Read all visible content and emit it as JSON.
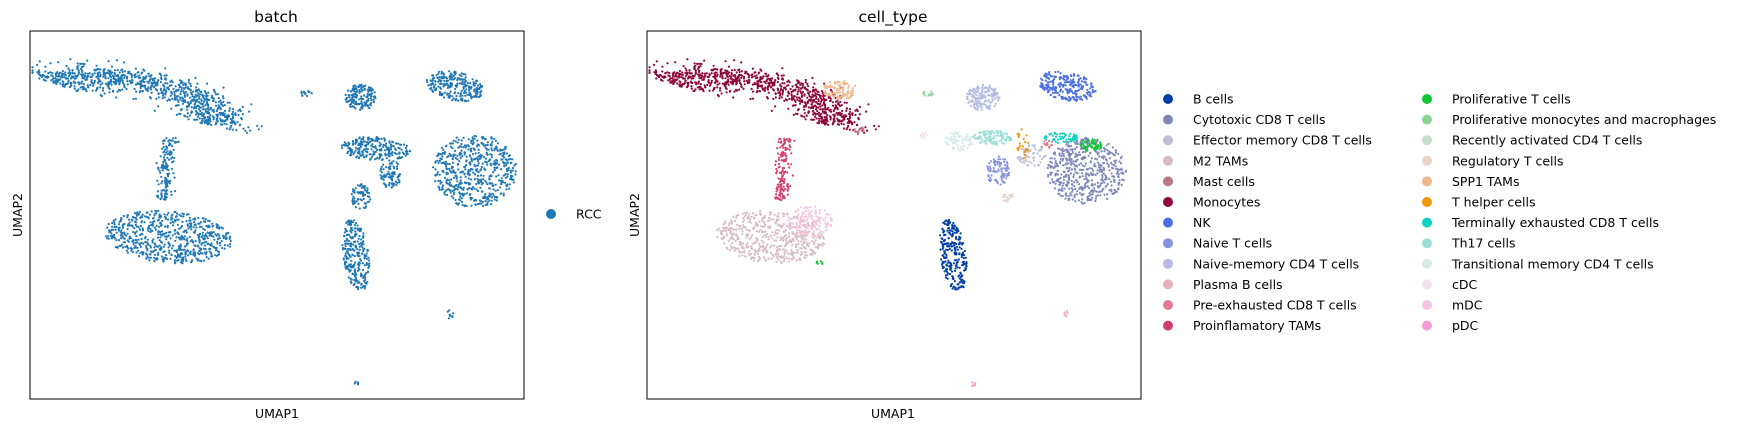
{
  "chart_data": [
    {
      "type": "scatter",
      "title": "batch",
      "xlabel": "UMAP1",
      "ylabel": "UMAP2",
      "xlim": [
        0,
        100
      ],
      "ylim": [
        0,
        100
      ],
      "grid": false,
      "ticks": false,
      "legend_position": "right",
      "legend": [
        {
          "name": "RCC",
          "color": "#1f77b4"
        }
      ],
      "clusters": [
        {
          "label": "RCC",
          "color": "#1f77b4",
          "shape": "arc",
          "cx": 20,
          "cy": 79,
          "rx": 18,
          "ry": 8,
          "rot": -14,
          "n": 900
        },
        {
          "label": "RCC",
          "color": "#1f77b4",
          "shape": "blob",
          "cx": 28,
          "cy": 44,
          "rx": 13,
          "ry": 7,
          "rot": -8,
          "n": 650
        },
        {
          "label": "RCC",
          "color": "#1f77b4",
          "shape": "stem",
          "x0": 28,
          "y0": 71,
          "x1": 27,
          "y1": 54,
          "w": 1.6,
          "n": 140
        },
        {
          "label": "RCC",
          "color": "#1f77b4",
          "shape": "blob",
          "cx": 66,
          "cy": 39,
          "rx": 2.6,
          "ry": 10,
          "rot": 6,
          "n": 260
        },
        {
          "label": "RCC",
          "color": "#1f77b4",
          "shape": "blob",
          "cx": 67,
          "cy": 55,
          "rx": 2,
          "ry": 3.5,
          "rot": 0,
          "n": 70
        },
        {
          "label": "RCC",
          "color": "#1f77b4",
          "shape": "blob",
          "cx": 90,
          "cy": 62,
          "rx": 8.5,
          "ry": 10,
          "rot": 0,
          "n": 560
        },
        {
          "label": "RCC",
          "color": "#1f77b4",
          "shape": "blob",
          "cx": 86,
          "cy": 85,
          "rx": 6,
          "ry": 3.8,
          "rot": -20,
          "n": 240
        },
        {
          "label": "RCC",
          "color": "#1f77b4",
          "shape": "blob",
          "cx": 67,
          "cy": 82,
          "rx": 3.2,
          "ry": 3.5,
          "rot": 0,
          "n": 160
        },
        {
          "label": "RCC",
          "color": "#1f77b4",
          "shape": "blob",
          "cx": 70,
          "cy": 68,
          "rx": 7,
          "ry": 3.2,
          "rot": -5,
          "n": 240
        },
        {
          "label": "RCC",
          "color": "#1f77b4",
          "shape": "blob",
          "cx": 73,
          "cy": 61,
          "rx": 2.2,
          "ry": 4,
          "rot": 0,
          "n": 80
        },
        {
          "label": "RCC",
          "color": "#1f77b4",
          "shape": "blob",
          "cx": 56,
          "cy": 83,
          "rx": 1.4,
          "ry": 0.8,
          "rot": 0,
          "n": 14
        },
        {
          "label": "RCC",
          "color": "#1f77b4",
          "shape": "blob",
          "cx": 85,
          "cy": 23,
          "rx": 0.9,
          "ry": 1.2,
          "rot": 0,
          "n": 8
        },
        {
          "label": "RCC",
          "color": "#1f77b4",
          "shape": "blob",
          "cx": 66,
          "cy": 4,
          "rx": 0.5,
          "ry": 0.8,
          "rot": 0,
          "n": 5
        }
      ]
    },
    {
      "type": "scatter",
      "title": "cell_type",
      "xlabel": "UMAP1",
      "ylabel": "UMAP2",
      "xlim": [
        0,
        100
      ],
      "ylim": [
        0,
        100
      ],
      "grid": false,
      "ticks": false,
      "legend_position": "right",
      "legend": [
        {
          "name": "B cells",
          "color": "#023fa5"
        },
        {
          "name": "Cytotoxic CD8 T cells",
          "color": "#7d87b9"
        },
        {
          "name": "Effector memory CD8 T cells",
          "color": "#bec1d4"
        },
        {
          "name": "M2 TAMs",
          "color": "#d6bcc0"
        },
        {
          "name": "Mast cells",
          "color": "#bb7784"
        },
        {
          "name": "Monocytes",
          "color": "#8e063b"
        },
        {
          "name": "NK",
          "color": "#4a6fe3"
        },
        {
          "name": "Naive T cells",
          "color": "#8595e1"
        },
        {
          "name": "Naive-memory CD4 T cells",
          "color": "#b5bbe3"
        },
        {
          "name": "Plasma B cells",
          "color": "#e6afb9"
        },
        {
          "name": "Pre-exhausted CD8 T cells",
          "color": "#e07b91"
        },
        {
          "name": "Proinflamatory TAMs",
          "color": "#d33f6a"
        },
        {
          "name": "Proliferative T cells",
          "color": "#11c638"
        },
        {
          "name": "Proliferative monocytes and macrophages",
          "color": "#8dd593"
        },
        {
          "name": "Recently activated CD4 T cells",
          "color": "#c6dec7"
        },
        {
          "name": "Regulatory T cells",
          "color": "#ead3c6"
        },
        {
          "name": "SPP1 TAMs",
          "color": "#f0b98d"
        },
        {
          "name": "T helper cells",
          "color": "#ef9708"
        },
        {
          "name": "Terminally exhausted CD8 T cells",
          "color": "#0fcfc0"
        },
        {
          "name": "Th17 cells",
          "color": "#9cded6"
        },
        {
          "name": "Transitional memory CD4 T cells",
          "color": "#d5eae7"
        },
        {
          "name": "cDC",
          "color": "#f3e1eb"
        },
        {
          "name": "mDC",
          "color": "#f6c4e1"
        },
        {
          "name": "pDC",
          "color": "#f79cd4"
        }
      ],
      "clusters": [
        {
          "label": "Monocytes",
          "color": "#8e063b",
          "shape": "arc",
          "cx": 20,
          "cy": 79,
          "rx": 18,
          "ry": 8,
          "rot": -14,
          "n": 900
        },
        {
          "label": "SPP1 TAMs",
          "color": "#f0b98d",
          "shape": "blob",
          "cx": 39,
          "cy": 84,
          "rx": 3.4,
          "ry": 2.8,
          "rot": 0,
          "n": 90
        },
        {
          "label": "Proinflamatory TAMs",
          "color": "#d33f6a",
          "shape": "stem",
          "x0": 28,
          "y0": 71,
          "x1": 27,
          "y1": 54,
          "w": 1.6,
          "n": 140
        },
        {
          "label": "M2 TAMs",
          "color": "#d6bcc0",
          "shape": "blob",
          "cx": 25,
          "cy": 44,
          "rx": 11,
          "ry": 7,
          "rot": -8,
          "n": 520
        },
        {
          "label": "mDC",
          "color": "#f6c4e1",
          "shape": "blob",
          "cx": 33,
          "cy": 48,
          "rx": 4.5,
          "ry": 4.5,
          "rot": 0,
          "n": 140
        },
        {
          "label": "Mast cells",
          "color": "#bb7784",
          "shape": "blob",
          "cx": 43,
          "cy": 73,
          "rx": 1,
          "ry": 1.5,
          "rot": 0,
          "n": 14
        },
        {
          "label": "Proliferative monocytes and macrophages",
          "color": "#8dd593",
          "shape": "blob",
          "cx": 57,
          "cy": 83,
          "rx": 1.3,
          "ry": 0.8,
          "rot": 0,
          "n": 12
        },
        {
          "label": "Proliferative T cells",
          "color": "#11c638",
          "shape": "blob",
          "cx": 35,
          "cy": 37,
          "rx": 0.8,
          "ry": 0.6,
          "rot": 0,
          "n": 6
        },
        {
          "label": "B cells",
          "color": "#023fa5",
          "shape": "blob",
          "cx": 62,
          "cy": 39,
          "rx": 2.6,
          "ry": 10,
          "rot": 6,
          "n": 260
        },
        {
          "label": "Naive-memory CD4 T cells",
          "color": "#b5bbe3",
          "shape": "blob",
          "cx": 68,
          "cy": 82,
          "rx": 3.4,
          "ry": 3.6,
          "rot": 0,
          "n": 160
        },
        {
          "label": "NK",
          "color": "#4a6fe3",
          "shape": "blob",
          "cx": 85,
          "cy": 85,
          "rx": 6,
          "ry": 3.8,
          "rot": -20,
          "n": 240
        },
        {
          "label": "Th17 cells",
          "color": "#9cded6",
          "shape": "blob",
          "cx": 70,
          "cy": 71,
          "rx": 4,
          "ry": 2,
          "rot": 0,
          "n": 110
        },
        {
          "label": "Transitional memory CD4 T cells",
          "color": "#d5eae7",
          "shape": "blob",
          "cx": 63,
          "cy": 70,
          "rx": 3,
          "ry": 2.5,
          "rot": 0,
          "n": 70
        },
        {
          "label": "Naive T cells",
          "color": "#8595e1",
          "shape": "blob",
          "cx": 71,
          "cy": 62,
          "rx": 2.4,
          "ry": 4,
          "rot": 0,
          "n": 90
        },
        {
          "label": "Regulatory T cells",
          "color": "#ead3c6",
          "shape": "blob",
          "cx": 73,
          "cy": 55,
          "rx": 1.2,
          "ry": 1.4,
          "rot": 0,
          "n": 20
        },
        {
          "label": "Effector memory CD8 T cells",
          "color": "#bec1d4",
          "shape": "blob",
          "cx": 78,
          "cy": 66,
          "rx": 3,
          "ry": 3,
          "rot": 0,
          "n": 60
        },
        {
          "label": "Cytotoxic CD8 T cells",
          "color": "#7d87b9",
          "shape": "blob",
          "cx": 89,
          "cy": 62,
          "rx": 8,
          "ry": 9,
          "rot": 0,
          "n": 520
        },
        {
          "label": "Terminally exhausted CD8 T cells",
          "color": "#0fcfc0",
          "shape": "blob",
          "cx": 84,
          "cy": 71,
          "rx": 3.5,
          "ry": 1.5,
          "rot": 0,
          "n": 60
        },
        {
          "label": "Proliferative T cells",
          "color": "#11c638",
          "shape": "blob",
          "cx": 90,
          "cy": 69,
          "rx": 2.2,
          "ry": 1.8,
          "rot": 0,
          "n": 55
        },
        {
          "label": "T helper cells",
          "color": "#ef9708",
          "shape": "blob",
          "cx": 76,
          "cy": 70,
          "rx": 1.2,
          "ry": 5,
          "rot": 0,
          "n": 22
        },
        {
          "label": "Pre-exhausted CD8 T cells",
          "color": "#e07b91",
          "shape": "blob",
          "cx": 81,
          "cy": 69,
          "rx": 1.5,
          "ry": 1.2,
          "rot": 0,
          "n": 14
        },
        {
          "label": "Plasma B cells",
          "color": "#e6afb9",
          "shape": "blob",
          "cx": 85,
          "cy": 23,
          "rx": 0.9,
          "ry": 1.2,
          "rot": 0,
          "n": 8
        },
        {
          "label": "cDC",
          "color": "#f3e1eb",
          "shape": "blob",
          "cx": 56,
          "cy": 72,
          "rx": 1,
          "ry": 1.2,
          "rot": 0,
          "n": 10
        },
        {
          "label": "pDC",
          "color": "#f79cd4",
          "shape": "blob",
          "cx": 66,
          "cy": 4,
          "rx": 0.5,
          "ry": 0.8,
          "rot": 0,
          "n": 5
        }
      ]
    }
  ]
}
